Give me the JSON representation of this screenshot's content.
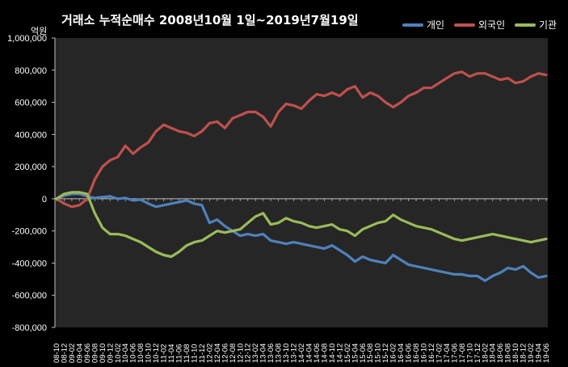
{
  "title": "거래소 누적순매수 2008년10월 1일~2019년7월19일",
  "y_unit": "억원",
  "legend": [
    {
      "name": "개인",
      "color": "#4f81bd"
    },
    {
      "name": "외국인",
      "color": "#c0504d"
    },
    {
      "name": "기관",
      "color": "#9bbb59"
    }
  ],
  "chart_data": {
    "type": "line",
    "title": "거래소 누적순매수 2008년10월 1일~2019년7월19일",
    "ylabel": "억원",
    "ylim": [
      -800000,
      1000000
    ],
    "yticks": [
      -800000,
      -600000,
      -400000,
      -200000,
      0,
      200000,
      400000,
      600000,
      800000,
      1000000
    ],
    "ytick_labels": [
      "-800,000",
      "-600,000",
      "-400,000",
      "-200,000",
      "0",
      "200,000",
      "400,000",
      "600,000",
      "800,000",
      "1,000,000"
    ],
    "legend_position": "top-right",
    "grid": false,
    "x": [
      "08-10",
      "08-12",
      "09-02",
      "09-04",
      "09-06",
      "09-08",
      "09-10",
      "09-12",
      "10-02",
      "10-04",
      "10-06",
      "10-08",
      "10-10",
      "10-12",
      "11-02",
      "11-04",
      "11-06",
      "11-08",
      "11-10",
      "11-12",
      "12-02",
      "12-04",
      "12-06",
      "12-08",
      "12-10",
      "12-12",
      "13-02",
      "13-04",
      "13-06",
      "13-08",
      "13-10",
      "13-12",
      "14-02",
      "14-04",
      "14-06",
      "14-08",
      "14-10",
      "14-12",
      "15-02",
      "15-04",
      "15-06",
      "15-08",
      "15-10",
      "15-12",
      "16-02",
      "16-04",
      "16-06",
      "16-08",
      "16-10",
      "16-12",
      "17-02",
      "17-04",
      "17-06",
      "17-08",
      "17-10",
      "17-12",
      "18-02",
      "18-04",
      "18-06",
      "18-08",
      "18-10",
      "18-12",
      "19-02",
      "19-04",
      "19-06"
    ],
    "series": [
      {
        "name": "개인",
        "color": "#4f81bd",
        "values": [
          0,
          20000,
          30000,
          30000,
          15000,
          5000,
          10000,
          15000,
          0,
          5000,
          -10000,
          -5000,
          -30000,
          -50000,
          -40000,
          -30000,
          -20000,
          -10000,
          -30000,
          -40000,
          -150000,
          -130000,
          -170000,
          -200000,
          -230000,
          -220000,
          -230000,
          -220000,
          -260000,
          -270000,
          -280000,
          -270000,
          -280000,
          -290000,
          -300000,
          -310000,
          -290000,
          -320000,
          -350000,
          -390000,
          -360000,
          -380000,
          -390000,
          -400000,
          -350000,
          -380000,
          -410000,
          -420000,
          -430000,
          -440000,
          -450000,
          -460000,
          -470000,
          -470000,
          -480000,
          -480000,
          -510000,
          -480000,
          -460000,
          -430000,
          -440000,
          -420000,
          -460000,
          -490000,
          -480000
        ]
      },
      {
        "name": "외국인",
        "color": "#c0504d",
        "values": [
          0,
          -30000,
          -50000,
          -40000,
          0,
          120000,
          200000,
          240000,
          260000,
          330000,
          280000,
          320000,
          350000,
          420000,
          460000,
          440000,
          420000,
          410000,
          390000,
          420000,
          470000,
          480000,
          440000,
          500000,
          520000,
          540000,
          540000,
          510000,
          450000,
          540000,
          590000,
          580000,
          560000,
          610000,
          650000,
          640000,
          660000,
          640000,
          680000,
          700000,
          630000,
          660000,
          640000,
          600000,
          570000,
          600000,
          640000,
          660000,
          690000,
          690000,
          720000,
          750000,
          780000,
          790000,
          760000,
          780000,
          780000,
          760000,
          740000,
          750000,
          720000,
          730000,
          760000,
          780000,
          770000
        ]
      },
      {
        "name": "기관",
        "color": "#9bbb59",
        "values": [
          0,
          30000,
          40000,
          40000,
          30000,
          -90000,
          -180000,
          -220000,
          -220000,
          -230000,
          -250000,
          -270000,
          -300000,
          -330000,
          -350000,
          -360000,
          -330000,
          -290000,
          -270000,
          -260000,
          -230000,
          -200000,
          -210000,
          -200000,
          -190000,
          -150000,
          -110000,
          -90000,
          -160000,
          -150000,
          -120000,
          -140000,
          -150000,
          -170000,
          -180000,
          -170000,
          -160000,
          -190000,
          -200000,
          -230000,
          -190000,
          -170000,
          -150000,
          -140000,
          -100000,
          -130000,
          -150000,
          -170000,
          -180000,
          -190000,
          -210000,
          -230000,
          -250000,
          -260000,
          -250000,
          -240000,
          -230000,
          -220000,
          -230000,
          -240000,
          -250000,
          -260000,
          -270000,
          -260000,
          -250000
        ]
      }
    ]
  }
}
